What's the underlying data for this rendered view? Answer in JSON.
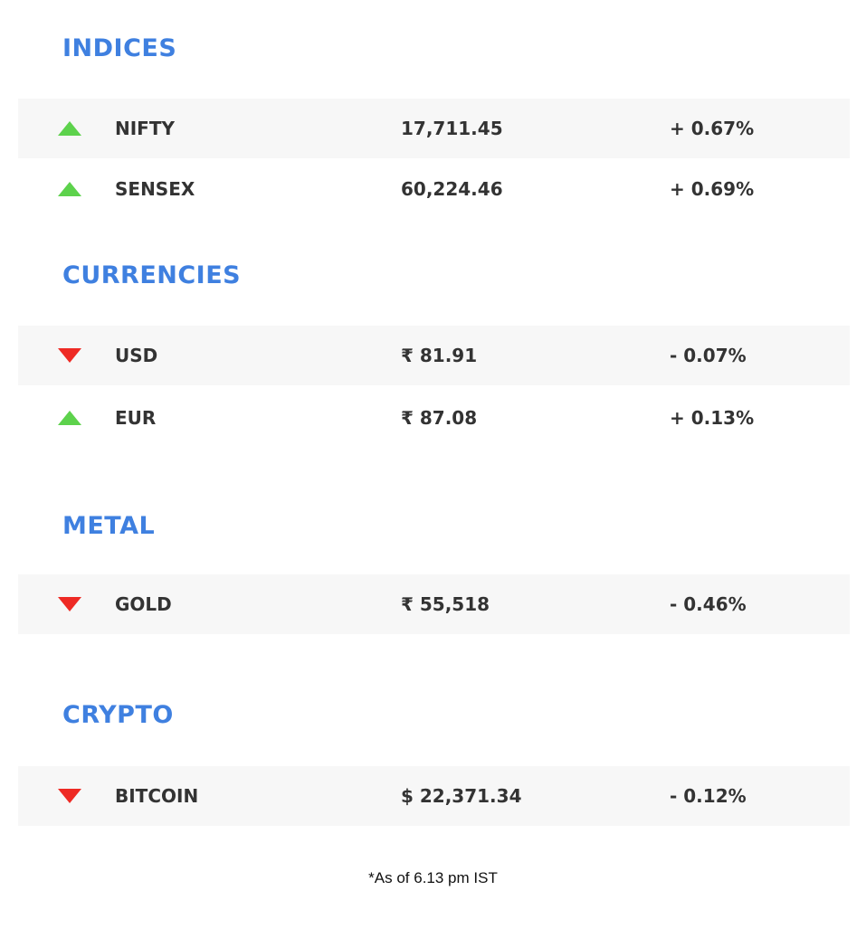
{
  "sections": [
    {
      "title": "INDICES",
      "rows": [
        {
          "direction": "up",
          "icon": "triangle-up-icon",
          "name": "NIFTY",
          "value": "17,711.45",
          "change": "+ 0.67%"
        },
        {
          "direction": "up",
          "icon": "triangle-up-icon",
          "name": "SENSEX",
          "value": "60,224.46",
          "change": "+ 0.69%"
        }
      ]
    },
    {
      "title": "CURRENCIES",
      "rows": [
        {
          "direction": "down",
          "icon": "triangle-down-icon",
          "name": "USD",
          "value": "₹ 81.91",
          "change": "- 0.07%"
        },
        {
          "direction": "up",
          "icon": "triangle-up-icon",
          "name": "EUR",
          "value": "₹ 87.08",
          "change": "+ 0.13%"
        }
      ]
    },
    {
      "title": "METAL",
      "rows": [
        {
          "direction": "down",
          "icon": "triangle-down-icon",
          "name": "GOLD",
          "value": "₹ 55,518",
          "change": "- 0.46%"
        }
      ]
    },
    {
      "title": "CRYPTO",
      "rows": [
        {
          "direction": "down",
          "icon": "triangle-down-icon",
          "name": "BITCOIN",
          "value": "$ 22,371.34",
          "change": "- 0.12%"
        }
      ]
    }
  ],
  "footnote": "*As of 6.13 pm IST",
  "colors": {
    "title": "#3f80e0",
    "up": "#5dd24c",
    "down": "#ee2a24",
    "row_shade": "#f7f7f7",
    "text": "#333333"
  }
}
